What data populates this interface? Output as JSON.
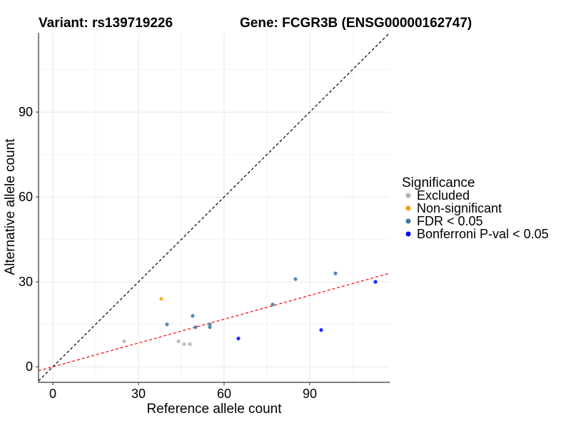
{
  "chart_data": {
    "type": "scatter",
    "title_left": "Variant: rs139719226",
    "title_right": "Gene: FCGR3B (ENSG00000162747)",
    "xlabel": "Reference allele count",
    "ylabel": "Alternative allele count",
    "xlim": [
      -5,
      118
    ],
    "ylim": [
      -5.5,
      118
    ],
    "xticks": [
      0,
      30,
      60,
      90
    ],
    "yticks": [
      0,
      30,
      60,
      90
    ],
    "grid": true,
    "legend": {
      "title": "Significance",
      "position": "right",
      "entries": [
        {
          "label": "Excluded",
          "color": "#b3b3b3"
        },
        {
          "label": "Non-significant",
          "color": "#f5a00f"
        },
        {
          "label": "FDR < 0.05",
          "color": "#3e73a8"
        },
        {
          "label": "Bonferroni P-val < 0.05",
          "color": "#0000ff"
        }
      ]
    },
    "reference_lines": [
      {
        "kind": "identity",
        "slope": 1,
        "intercept": 0,
        "color": "#000000",
        "style": "dashed"
      },
      {
        "kind": "fit",
        "slope": 0.28,
        "intercept": 0,
        "color": "#ff0000",
        "style": "dashed"
      }
    ],
    "series": [
      {
        "name": "Excluded",
        "color": "#b3b3b3",
        "points": [
          [
            25,
            9
          ],
          [
            44,
            9
          ],
          [
            46,
            8
          ],
          [
            48,
            8
          ]
        ]
      },
      {
        "name": "Non-significant",
        "color": "#f5a00f",
        "points": [
          [
            38,
            24
          ]
        ]
      },
      {
        "name": "FDR < 0.05",
        "color": "#3e73a8",
        "points": [
          [
            40,
            15
          ],
          [
            49,
            18
          ],
          [
            50,
            14
          ],
          [
            55,
            15
          ],
          [
            55,
            14
          ],
          [
            77,
            22
          ],
          [
            85,
            31
          ],
          [
            99,
            33
          ]
        ]
      },
      {
        "name": "Bonferroni P-val < 0.05",
        "color": "#0000ff",
        "points": [
          [
            65,
            10
          ],
          [
            94,
            13
          ],
          [
            113,
            30
          ]
        ]
      }
    ]
  }
}
